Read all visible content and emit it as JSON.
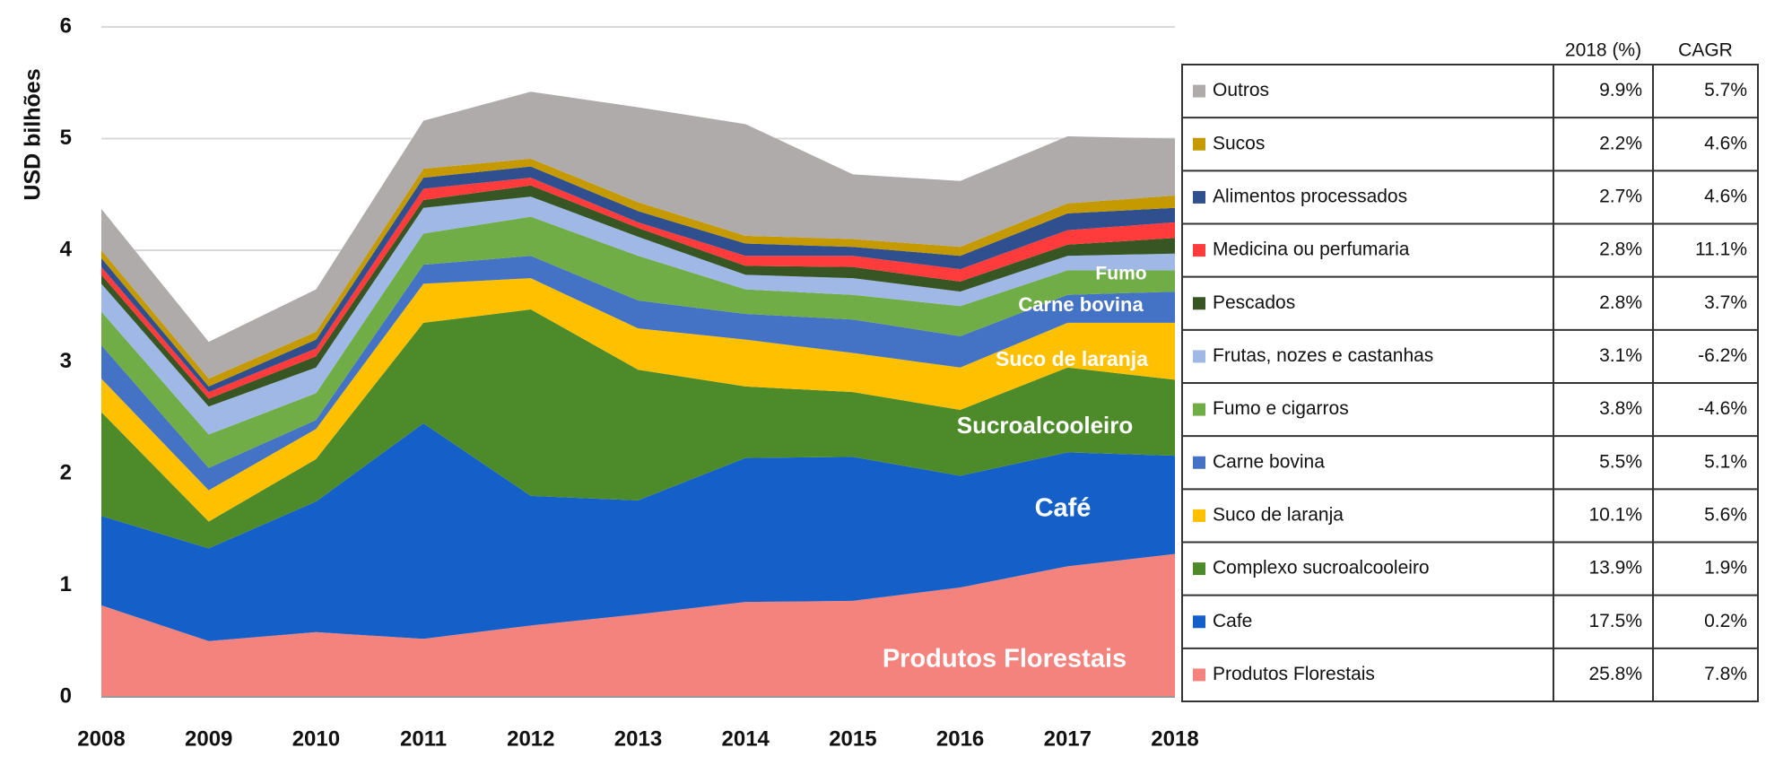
{
  "chart_data": {
    "type": "stacked_area",
    "y_label": "USD bilhões",
    "x": [
      2008,
      2009,
      2010,
      2011,
      2012,
      2013,
      2014,
      2015,
      2016,
      2017,
      2018
    ],
    "xlim": [
      2008,
      2018
    ],
    "ylim": [
      0,
      6
    ],
    "yticks": [
      0,
      1,
      2,
      3,
      4,
      5,
      6
    ],
    "grid": true,
    "table_headers": [
      "2018 (%)",
      "CAGR"
    ],
    "series": [
      {
        "name": "Produtos Florestais",
        "color": "#f4837d",
        "share": "25.8%",
        "cagr": "7.8%",
        "values": [
          0.82,
          0.5,
          0.58,
          0.52,
          0.64,
          0.74,
          0.85,
          0.86,
          0.98,
          1.17,
          1.28
        ]
      },
      {
        "name": "Cafe",
        "color": "#1560c8",
        "share": "17.5%",
        "cagr": "0.2%",
        "values": [
          0.8,
          0.83,
          1.17,
          1.93,
          1.16,
          1.02,
          1.29,
          1.29,
          1.0,
          1.02,
          0.88
        ]
      },
      {
        "name": "Complexo sucroalcooleiro",
        "color": "#4d8a2a",
        "share": "13.9%",
        "cagr": "1.9%",
        "values": [
          0.93,
          0.24,
          0.38,
          0.9,
          1.67,
          1.17,
          0.64,
          0.58,
          0.59,
          0.76,
          0.68
        ]
      },
      {
        "name": "Suco de laranja",
        "color": "#ffc000",
        "share": "10.1%",
        "cagr": "5.6%",
        "values": [
          0.3,
          0.28,
          0.27,
          0.35,
          0.28,
          0.37,
          0.42,
          0.35,
          0.38,
          0.4,
          0.51
        ]
      },
      {
        "name": "Carne bovina",
        "color": "#4472c4",
        "share": "5.5%",
        "cagr": "5.1%",
        "values": [
          0.3,
          0.2,
          0.08,
          0.17,
          0.2,
          0.25,
          0.23,
          0.3,
          0.28,
          0.25,
          0.28
        ]
      },
      {
        "name": "Fumo e cigarros",
        "color": "#70ad47",
        "share": "3.8%",
        "cagr": "-4.6%",
        "values": [
          0.3,
          0.3,
          0.24,
          0.28,
          0.35,
          0.4,
          0.22,
          0.22,
          0.27,
          0.22,
          0.19
        ]
      },
      {
        "name": "Frutas, nozes e castanhas",
        "color": "#9fb8e6",
        "share": "3.1%",
        "cagr": "-6.2%",
        "values": [
          0.25,
          0.25,
          0.23,
          0.23,
          0.18,
          0.17,
          0.13,
          0.15,
          0.13,
          0.13,
          0.15
        ]
      },
      {
        "name": "Pescados",
        "color": "#375623",
        "share": "2.8%",
        "cagr": "3.7%",
        "values": [
          0.08,
          0.07,
          0.1,
          0.07,
          0.1,
          0.08,
          0.08,
          0.1,
          0.09,
          0.1,
          0.14
        ]
      },
      {
        "name": "Medicina ou perfumaria",
        "color": "#ff3b3b",
        "share": "2.8%",
        "cagr": "11.1%",
        "values": [
          0.07,
          0.06,
          0.07,
          0.1,
          0.07,
          0.05,
          0.09,
          0.1,
          0.11,
          0.13,
          0.14
        ]
      },
      {
        "name": "Alimentos processados",
        "color": "#2f4f8f",
        "share": "2.7%",
        "cagr": "4.6%",
        "values": [
          0.08,
          0.05,
          0.08,
          0.1,
          0.1,
          0.1,
          0.11,
          0.08,
          0.12,
          0.15,
          0.13
        ]
      },
      {
        "name": "Sucos",
        "color": "#c49a00",
        "share": "2.2%",
        "cagr": "4.6%",
        "values": [
          0.07,
          0.07,
          0.07,
          0.08,
          0.07,
          0.08,
          0.07,
          0.07,
          0.08,
          0.09,
          0.11
        ]
      },
      {
        "name": "Outros",
        "color": "#afabab",
        "share": "9.9%",
        "cagr": "5.7%",
        "values": [
          0.37,
          0.33,
          0.38,
          0.43,
          0.6,
          0.85,
          1.0,
          0.58,
          0.59,
          0.6,
          0.51
        ]
      }
    ],
    "annotations": [
      "Fumo",
      "Carne bovina",
      "Suco de laranja",
      "Sucroalcooleiro",
      "Café",
      "Produtos Florestais"
    ]
  }
}
